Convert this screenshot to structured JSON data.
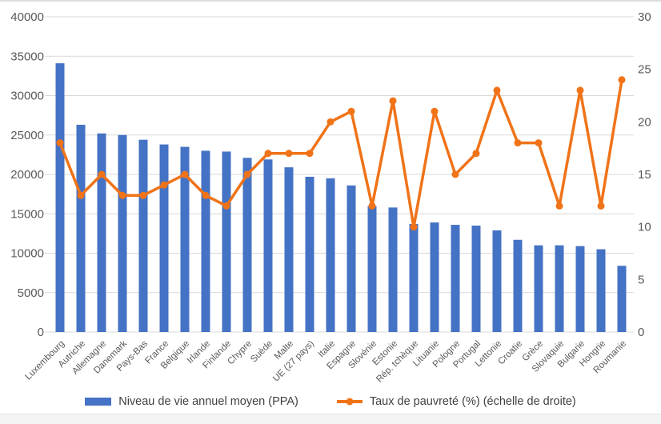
{
  "chart_data": {
    "type": "bar",
    "combo": "bar + line, dual axis",
    "title": "",
    "grid": true,
    "legend_position": "bottom",
    "categories": [
      "Luxembourg",
      "Autriche",
      "Allemagne",
      "Danemark",
      "Pays-Bas",
      "France",
      "Belgique",
      "Irlande",
      "Finlande",
      "Chypre",
      "Suède",
      "Malte",
      "UE (27 pays)",
      "Italie",
      "Espagne",
      "Slovénie",
      "Estonie",
      "Rép. tchèque",
      "Lituanie",
      "Pologne",
      "Portugal",
      "Lettonie",
      "Croatie",
      "Grèce",
      "Slovaquie",
      "Bulgarie",
      "Hongrie",
      "Roumanie"
    ],
    "series": [
      {
        "name": "Niveau de vie annuel moyen (PPA)",
        "type": "bar",
        "axis": "left",
        "values": [
          34100,
          26300,
          25200,
          25000,
          24400,
          23800,
          23500,
          23000,
          22900,
          22100,
          21900,
          20900,
          19700,
          19500,
          18600,
          16000,
          15800,
          13700,
          13900,
          13600,
          13500,
          12900,
          11700,
          11000,
          11000,
          10900,
          10500,
          8400
        ]
      },
      {
        "name": "Taux de pauvreté (%) (échelle de droite)",
        "type": "line",
        "axis": "right",
        "values": [
          18,
          13,
          15,
          13,
          13,
          14,
          15,
          13,
          12,
          15,
          17,
          17,
          17,
          20,
          21,
          12,
          22,
          10,
          21,
          15,
          17,
          23,
          18,
          18,
          12,
          23,
          12,
          24
        ]
      }
    ],
    "left_axis": {
      "min": 0,
      "max": 40000,
      "step": 5000,
      "ticks": [
        "0",
        "5000",
        "10000",
        "15000",
        "20000",
        "25000",
        "30000",
        "35000",
        "40000"
      ]
    },
    "right_axis": {
      "min": 0,
      "max": 30,
      "step": 5,
      "ticks": [
        "0",
        "5",
        "10",
        "15",
        "20",
        "25",
        "30"
      ]
    },
    "colors": {
      "bar": "#4472C4",
      "line": "#F07318",
      "grid": "#D9D9D9",
      "axis_text": "#595959",
      "legend_text": "#404040"
    }
  }
}
